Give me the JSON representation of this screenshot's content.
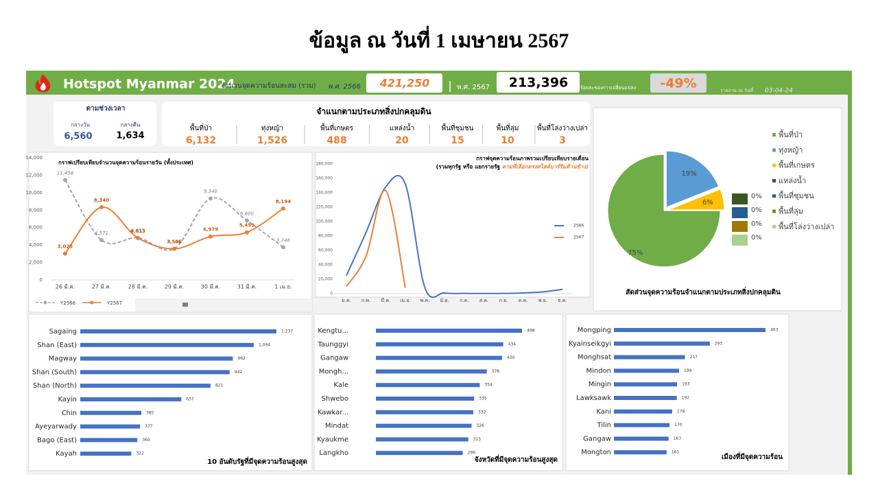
{
  "page_title": "ข้อมูล ณ วันที่ 1 เมษายน 2567",
  "header": {
    "title": "Hotspot Myanmar 2024",
    "cumulative_label": "จำนวนจุดความร้อนสะสม (รวม)",
    "year_a_label": "พ.ศ. 2566",
    "year_a_value": "421,250",
    "year_b_label": "พ.ศ. 2567",
    "year_b_value": "213,396",
    "change_label": "ร้อยละของการเปลี่ยนแปลง",
    "change_value": "-49%",
    "report_label": "รายงาน ณ วันที่",
    "report_date": "03-04-24"
  },
  "time_period": {
    "title": "ตามช่วงเวลา",
    "items": [
      {
        "label": "กลางวัน",
        "value": "6,560"
      },
      {
        "label": "กลางคืน",
        "value": "1,634"
      }
    ]
  },
  "land_cover": {
    "title": "จำแนกตามประเภทสิ่งปกคลุมดิน",
    "items": [
      {
        "label": "พื้นที่ป่า",
        "value": "6,132"
      },
      {
        "label": "ทุ่งหญ้า",
        "value": "1,526"
      },
      {
        "label": "พื้นที่เกษตร",
        "value": "488"
      },
      {
        "label": "แหล่งน้ำ",
        "value": "20"
      },
      {
        "label": "พื้นที่ชุมชน",
        "value": "15"
      },
      {
        "label": "พื้นที่ลุ่ม",
        "value": "10"
      },
      {
        "label": "พื้นที่โล่งว่างเปล่า",
        "value": "3"
      }
    ]
  },
  "chart_data": [
    {
      "type": "line",
      "title": "กราฟเปรียบเทียบจำนวนจุดความร้อนรายวัน (ทั้งประเทศ)",
      "smooth": true,
      "grid": false,
      "categories": [
        "26 มี.ค.",
        "27 มี.ค.",
        "28 มี.ค.",
        "29 มี.ค.",
        "30 มี.ค.",
        "31 มี.ค.",
        "1 เม.ย."
      ],
      "series": [
        {
          "name": "Y2566",
          "color": "#a6a6a6",
          "dashed": true,
          "values": [
            11458,
            4571,
            4833,
            3586,
            9340,
            6800,
            3746
          ],
          "value_labels": [
            "11,458",
            "4,571",
            "4,833",
            "3,586",
            "9,340",
            "6,800",
            "3,746"
          ]
        },
        {
          "name": "Y2567",
          "color": "#ed7d31",
          "values": [
            3025,
            8340,
            4813,
            3566,
            4979,
            5459,
            8194
          ],
          "value_labels": [
            "3,025",
            "8,340",
            "4,813",
            "3,566",
            "4,979",
            "5,459",
            "8,194"
          ]
        }
      ],
      "ylim": [
        0,
        14000
      ],
      "yticks": [
        0,
        {
          "value": 2000,
          "label": "2,000"
        },
        {
          "value": 4000,
          "label": "4,000"
        },
        {
          "value": 6000,
          "label": "6,000"
        },
        {
          "value": 8000,
          "label": "8,000"
        },
        {
          "value": 10000,
          "label": "10,000"
        },
        {
          "value": 12000,
          "label": "12,000"
        },
        {
          "value": 14000,
          "label": "14,000"
        }
      ]
    },
    {
      "type": "line",
      "title": "กราฟจุดความร้อนภาพรวมเปรียบเทียบรายเดือน",
      "subtitle": "(รวมทุกรัฐ หรือ แยกรายรัฐ",
      "subtitle_highlight": "ตามที่เลือกตรงสไลด์บาร์ริมด้านข้าง)",
      "smooth": true,
      "grid": false,
      "categories": [
        "ม.ค.",
        "ก.พ.",
        "มี.ค.",
        "เม.ย.",
        "พ.ค.",
        "มิ.ย.",
        "ก.ค.",
        "ส.ค.",
        "ก.ย.",
        "ต.ค.",
        "พ.ย.",
        "ธ.ค."
      ],
      "series": [
        {
          "name": "2566",
          "color": "#4472c4",
          "values": [
            25000,
            85000,
            148000,
            152000,
            8000,
            1000,
            300,
            200,
            300,
            1000,
            2500,
            6000
          ]
        },
        {
          "name": "2567",
          "color": "#ed7d31",
          "values": [
            10000,
            52000,
            143000,
            8000,
            null,
            null,
            null,
            null,
            null,
            null,
            null,
            null
          ]
        }
      ],
      "ylim": [
        0,
        180000
      ],
      "yticks": [
        0,
        {
          "value": 20000,
          "label": "20,000"
        },
        {
          "value": 40000,
          "label": "40,000"
        },
        {
          "value": 60000,
          "label": "60,000"
        },
        {
          "value": 80000,
          "label": "80,000"
        },
        {
          "value": 100000,
          "label": "100,000"
        },
        {
          "value": 120000,
          "label": "120,000"
        },
        {
          "value": 140000,
          "label": "140,000"
        },
        {
          "value": 160000,
          "label": "160,000"
        },
        {
          "value": 180000,
          "label": "180,000"
        }
      ]
    },
    {
      "type": "pie",
      "title": "สัดส่วนจุดความร้อนจำแนกตามประเภทสิ่งปกคลุมดิน",
      "categories": [
        "พื้นที่ป่า",
        "ทุ่งหญ้า",
        "พื้นที่เกษตร",
        "แหล่งน้ำ",
        "พื้นที่ชุมชน",
        "พื้นที่ลุ่ม",
        "พื้นที่โล่งว่างเปล่า"
      ],
      "values": [
        75,
        19,
        6,
        0,
        0,
        0,
        0
      ],
      "value_labels": [
        "75%",
        "19%",
        "6%",
        "0%",
        "0%",
        "0%",
        "0%"
      ],
      "colors": [
        "#70ad47",
        "#5b9bd5",
        "#ffc000",
        "#375623",
        "#255e91",
        "#9e7b00",
        "#a9d18e"
      ]
    },
    {
      "type": "hbar",
      "title": "10 อันดับรัฐที่มีจุดความร้อนสูงสุด",
      "color": "#4472c4",
      "xlim": [
        0,
        1300
      ],
      "categories": [
        "Sagaing",
        "Shan (East)",
        "Magway",
        "Shan (South)",
        "Shan (North)",
        "Kayin",
        "Chin",
        "Ayeyarwady",
        "Bago (East)",
        "Kayah"
      ],
      "values": [
        1237,
        1094,
        962,
        942,
        821,
        637,
        385,
        377,
        360,
        322
      ],
      "value_labels": [
        "1,237",
        "1,094",
        "962",
        "942",
        "821",
        "637",
        "385",
        "377",
        "360",
        "322"
      ]
    },
    {
      "type": "hbar",
      "title": "จังหวัดที่มีจุดความร้อนสูงสุด",
      "color": "#4472c4",
      "xlim": [
        0,
        550
      ],
      "categories": [
        "Kengtu...",
        "Taunggyi",
        "Gangaw",
        "Mongh...",
        "Kale",
        "Shwebo",
        "Kawkar...",
        "Mindat",
        "Kyaukme",
        "Langkho"
      ],
      "values": [
        498,
        434,
        430,
        378,
        354,
        335,
        332,
        326,
        315,
        296
      ]
    },
    {
      "type": "hbar",
      "title": "เมืองที่มีจุดความร้อน",
      "color": "#4472c4",
      "xlim": [
        0,
        500
      ],
      "categories": [
        "Mongping",
        "Kyainseikgyi",
        "Monghsat",
        "Mindon",
        "Mingin",
        "Lawksawk",
        "Kani",
        "Tilin",
        "Gangaw",
        "Mongton"
      ],
      "values": [
        463,
        293,
        217,
        199,
        193,
        192,
        178,
        170,
        167,
        161
      ]
    }
  ]
}
